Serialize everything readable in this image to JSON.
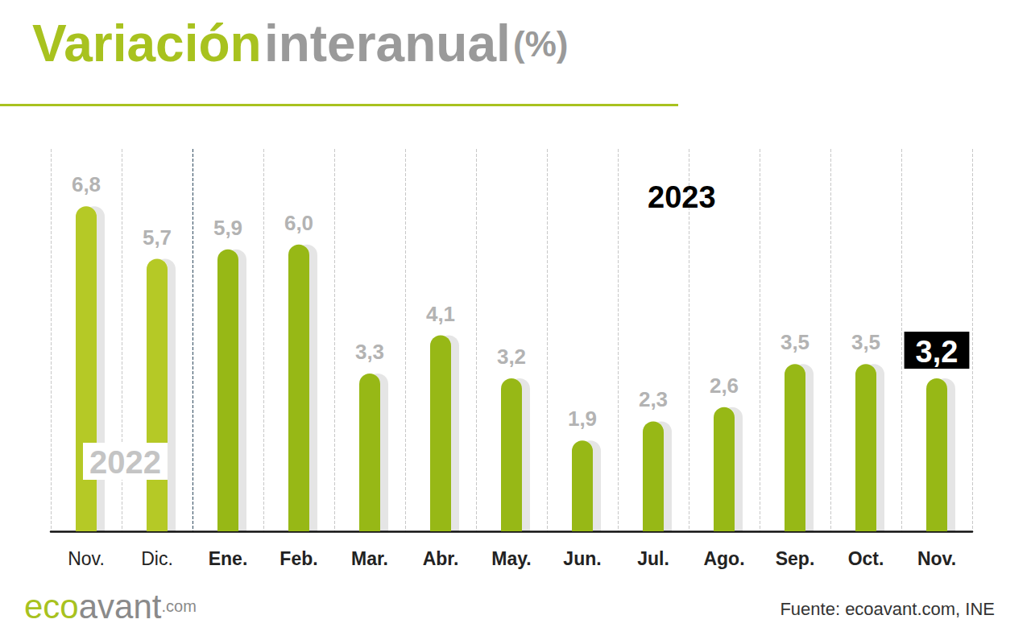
{
  "chart_data": {
    "type": "bar",
    "title": "Variación interanual (%)",
    "categories": [
      "Nov.",
      "Dic.",
      "Ene.",
      "Feb.",
      "Mar.",
      "Abr.",
      "May.",
      "Jun.",
      "Jul.",
      "Ago.",
      "Sep.",
      "Oct.",
      "Nov."
    ],
    "values": [
      6.8,
      5.7,
      5.9,
      6.0,
      3.3,
      4.1,
      3.2,
      1.9,
      2.3,
      2.6,
      3.5,
      3.5,
      3.2
    ],
    "value_labels": [
      "6,8",
      "5,7",
      "5,9",
      "6,0",
      "3,3",
      "4,1",
      "3,2",
      "1,9",
      "2,3",
      "2,6",
      "3,5",
      "3,5",
      "3,2"
    ],
    "colors": [
      "#b5c925",
      "#b5c925",
      "#97b817",
      "#97b817",
      "#97b817",
      "#97b817",
      "#97b817",
      "#97b817",
      "#97b817",
      "#97b817",
      "#97b817",
      "#97b817",
      "#97b817"
    ],
    "ylim": [
      0,
      8
    ],
    "data_labels": true,
    "tick_labels": "x",
    "grid": true,
    "annotations": [
      {
        "text": "2022"
      },
      {
        "text": "2023"
      }
    ],
    "source": "Fuente: ecoavant.com, INE",
    "logo": "ecoavant.com"
  }
}
